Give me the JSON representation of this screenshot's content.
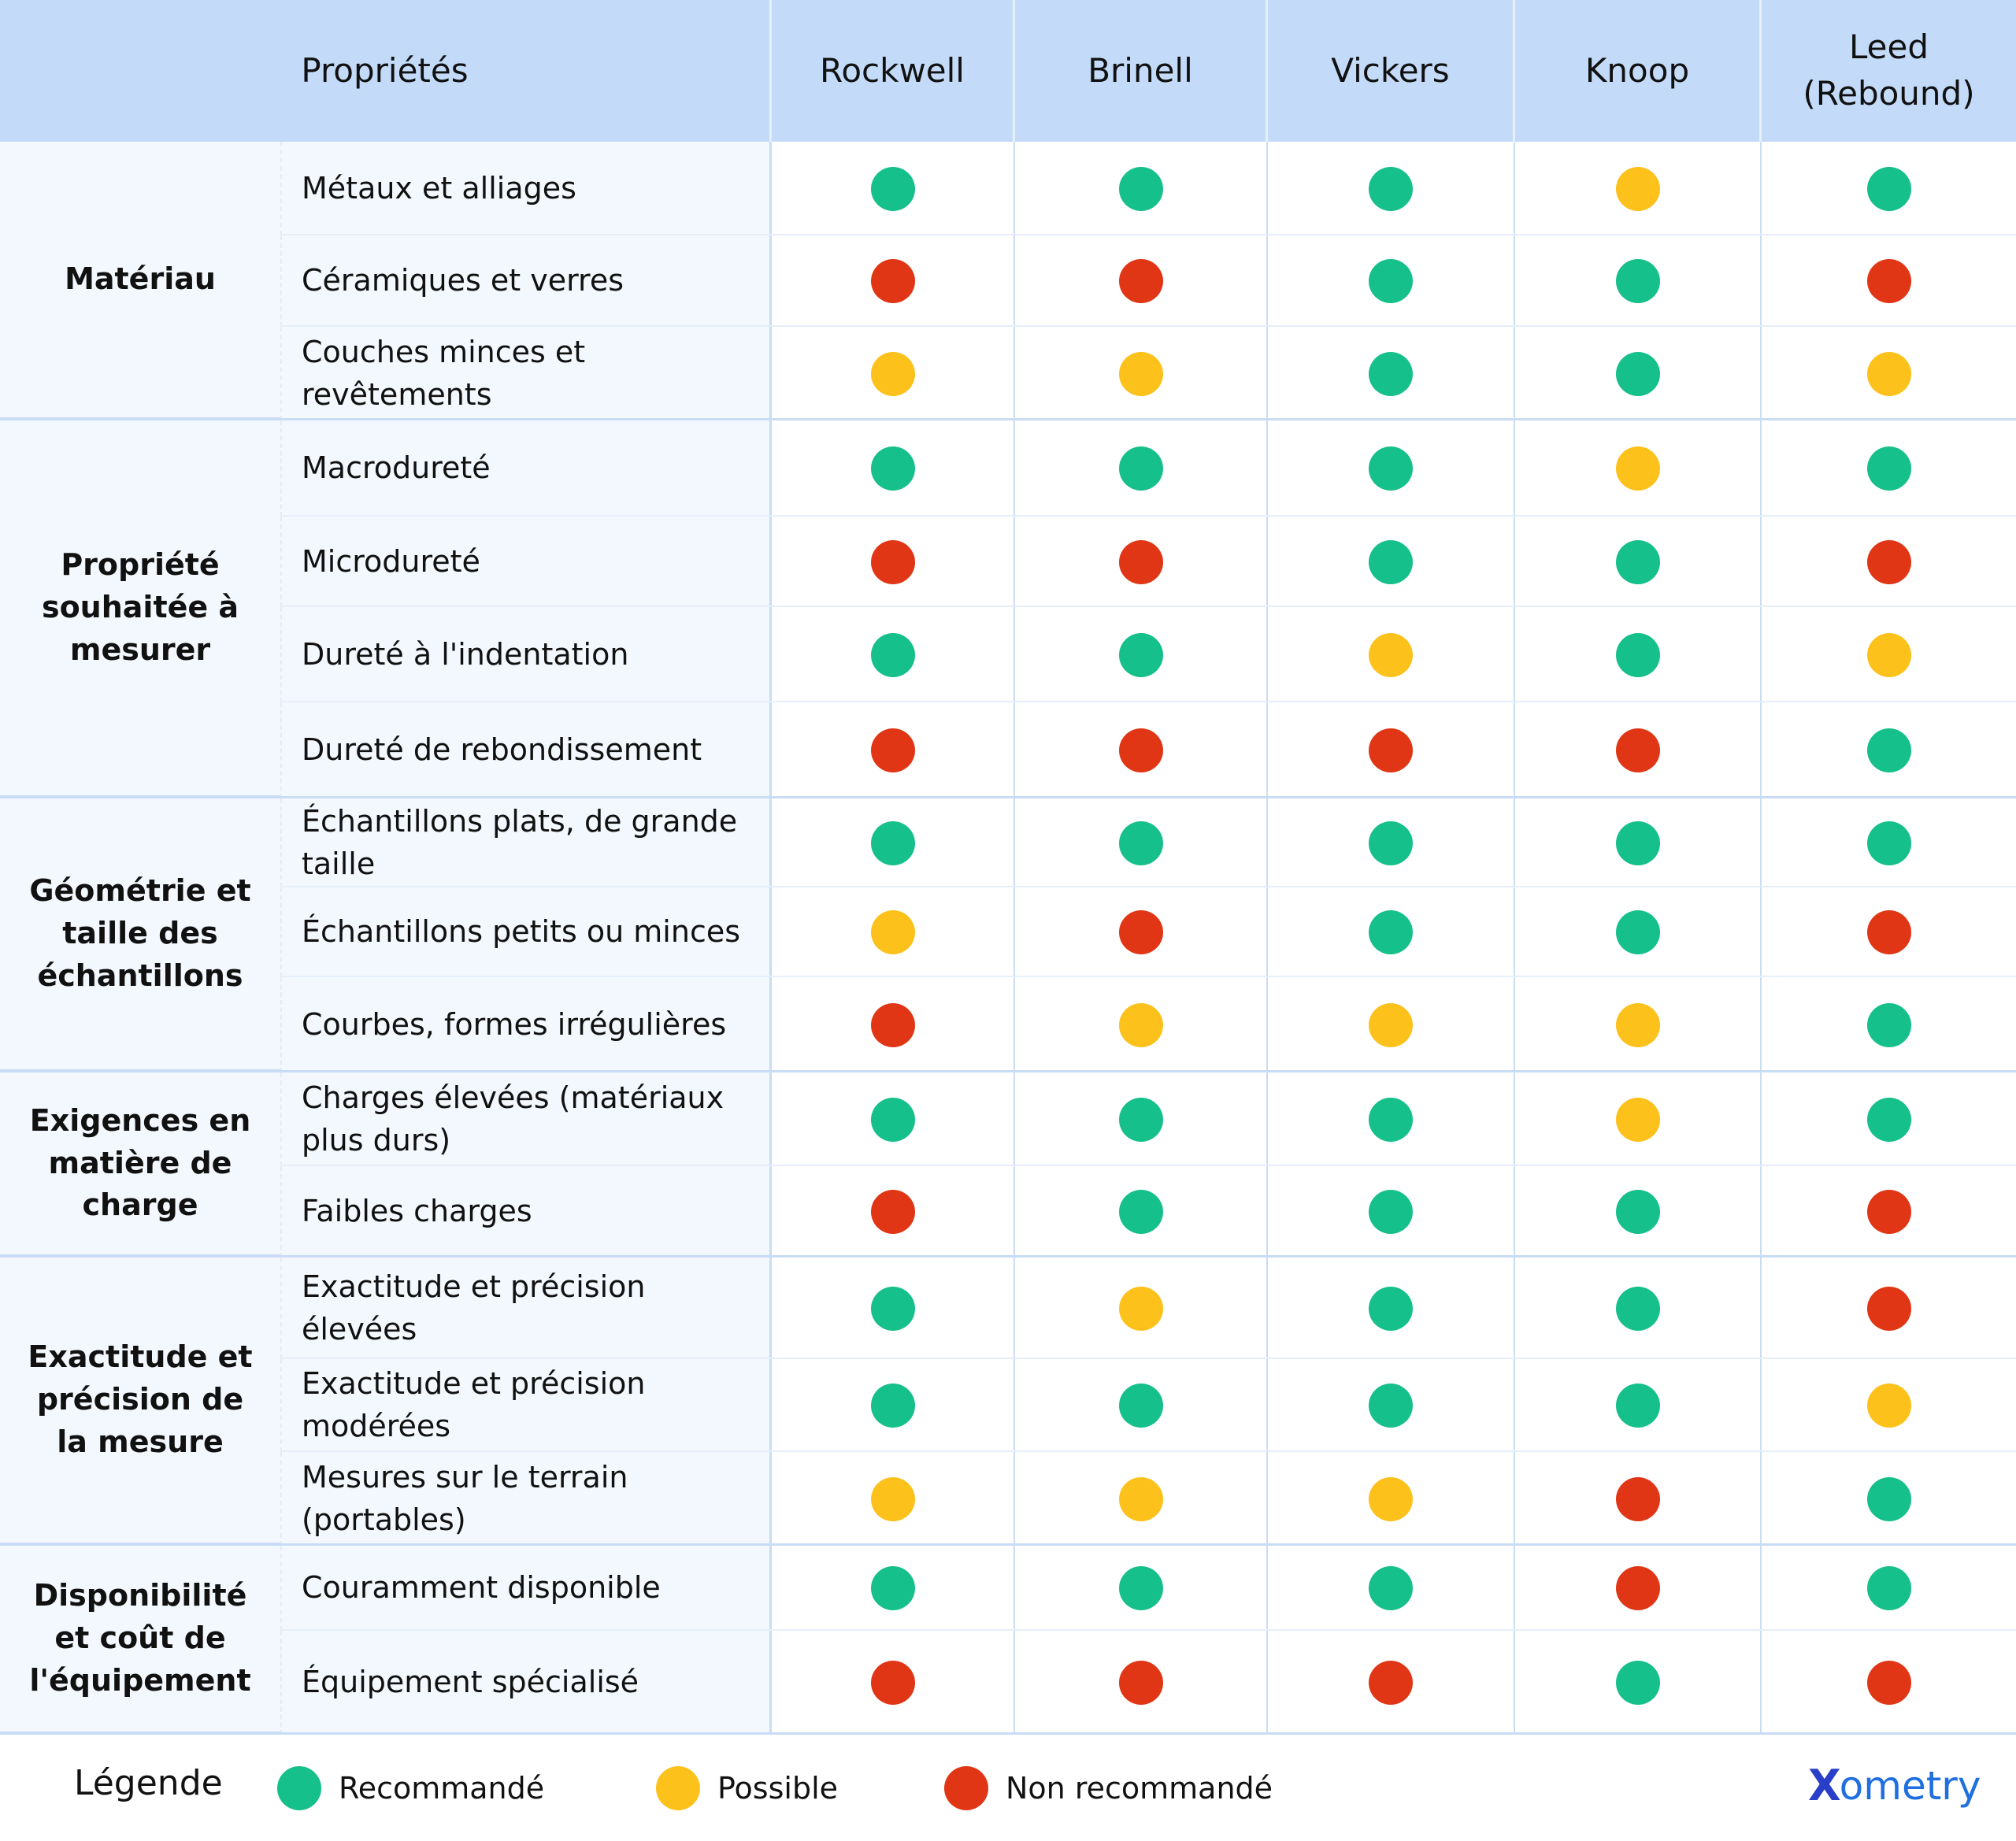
{
  "chart_data": {
    "type": "table",
    "title": "",
    "header": {
      "properties_label": "Propriétés",
      "methods": [
        "Rockwell",
        "Brinell",
        "Vickers",
        "Knoop",
        "Leed (Rebound)"
      ]
    },
    "rating_scale": {
      "R": "Recommandé",
      "P": "Possible",
      "N": "Non recommandé"
    },
    "groups": [
      {
        "name": "Matériau",
        "rows": [
          {
            "label": "Métaux et alliages",
            "ratings": [
              "R",
              "R",
              "R",
              "P",
              "R"
            ]
          },
          {
            "label": "Céramiques et verres",
            "ratings": [
              "N",
              "N",
              "R",
              "R",
              "N"
            ]
          },
          {
            "label": "Couches minces et revêtements",
            "ratings": [
              "P",
              "P",
              "R",
              "R",
              "P"
            ]
          }
        ]
      },
      {
        "name": "Propriété souhaitée à mesurer",
        "rows": [
          {
            "label": "Macrodureté",
            "ratings": [
              "R",
              "R",
              "R",
              "P",
              "R"
            ]
          },
          {
            "label": "Microdureté",
            "ratings": [
              "N",
              "N",
              "R",
              "R",
              "N"
            ]
          },
          {
            "label": "Dureté à l'indentation",
            "ratings": [
              "R",
              "R",
              "P",
              "R",
              "P"
            ]
          },
          {
            "label": "Dureté de rebondissement",
            "ratings": [
              "N",
              "N",
              "N",
              "N",
              "R"
            ]
          }
        ]
      },
      {
        "name": "Géométrie et taille des échantillons",
        "rows": [
          {
            "label": "Échantillons plats, de grande taille",
            "ratings": [
              "R",
              "R",
              "R",
              "R",
              "R"
            ]
          },
          {
            "label": "Échantillons petits ou minces",
            "ratings": [
              "P",
              "N",
              "R",
              "R",
              "N"
            ]
          },
          {
            "label": "Courbes, formes irrégulières",
            "ratings": [
              "N",
              "P",
              "P",
              "P",
              "R"
            ]
          }
        ]
      },
      {
        "name": "Exigences en matière de charge",
        "rows": [
          {
            "label": "Charges élevées (matériaux plus durs)",
            "ratings": [
              "R",
              "R",
              "R",
              "P",
              "R"
            ]
          },
          {
            "label": "Faibles charges",
            "ratings": [
              "N",
              "R",
              "R",
              "R",
              "N"
            ]
          }
        ]
      },
      {
        "name": "Exactitude et précision de la mesure",
        "rows": [
          {
            "label": "Exactitude et précision élevées",
            "ratings": [
              "R",
              "P",
              "R",
              "R",
              "N"
            ]
          },
          {
            "label": "Exactitude et précision modérées",
            "ratings": [
              "R",
              "R",
              "R",
              "R",
              "P"
            ]
          },
          {
            "label": "Mesures sur le terrain (portables)",
            "ratings": [
              "P",
              "P",
              "P",
              "N",
              "R"
            ]
          }
        ]
      },
      {
        "name": "Disponibilité et coût de l'équipement",
        "rows": [
          {
            "label": "Couramment disponible",
            "ratings": [
              "R",
              "R",
              "R",
              "N",
              "R"
            ]
          },
          {
            "label": "Équipement spécialisé",
            "ratings": [
              "N",
              "N",
              "N",
              "R",
              "N"
            ]
          }
        ]
      }
    ]
  },
  "colors": {
    "R": "#15c08a",
    "P": "#fdc11c",
    "N": "#e03616",
    "header_bg": "#c3dbf8",
    "brand": "#1f6fe0"
  },
  "legend": {
    "title": "Légende",
    "items": [
      {
        "key": "R",
        "label": "Recommandé"
      },
      {
        "key": "P",
        "label": "Possible"
      },
      {
        "key": "N",
        "label": "Non recommandé"
      }
    ]
  },
  "brand": {
    "logo_mark": "X",
    "logo_rest": "ometry"
  }
}
